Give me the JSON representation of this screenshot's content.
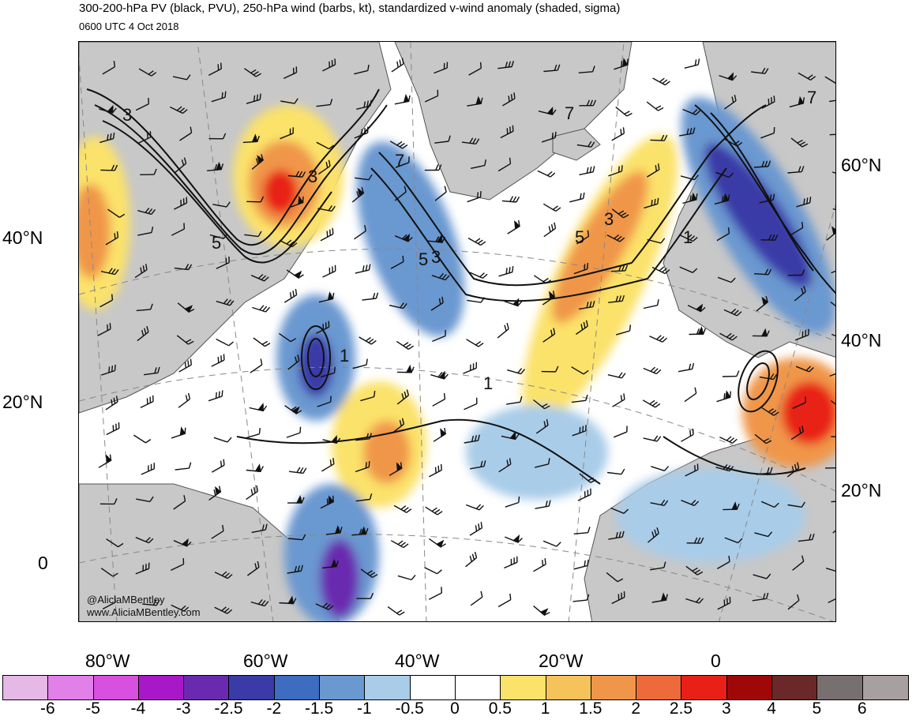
{
  "header": {
    "title": "300-200-hPa PV (black, PVU), 250-hPa wind (barbs, kt), standardized v-wind anomaly (shaded, sigma)",
    "valid_time": "0600 UTC 4 Oct 2018"
  },
  "map": {
    "projection": "conic (North Atlantic sector)",
    "left_lat_labels": [
      "40°N",
      "20°N",
      "0"
    ],
    "right_lat_labels": [
      "60°N",
      "40°N",
      "20°N"
    ],
    "lon_labels": [
      "80°W",
      "60°W",
      "40°W",
      "20°W",
      "0"
    ],
    "pv_contour_labels": [
      "3",
      "5",
      "3",
      "7",
      "5",
      "3",
      "5",
      "3",
      "1",
      "7",
      "1",
      "1",
      "7"
    ],
    "colors": {
      "land": "#c8c8c8",
      "ocean": "#ffffff",
      "coast": "#555555",
      "pv_contour": "#111111",
      "barb": "#111111"
    }
  },
  "credit": {
    "handle": "@AliciaMBentley",
    "site": "www.AliciaMBentley.com"
  },
  "colorbar": {
    "labels": [
      "-6",
      "-5",
      "-4",
      "-3",
      "-2.5",
      "-2",
      "-1.5",
      "-1",
      "-0.5",
      "0",
      "0.5",
      "1",
      "1.5",
      "2",
      "2.5",
      "3",
      "4",
      "5",
      "6"
    ],
    "colors": [
      "#e6b8e6",
      "#e080e8",
      "#d850e0",
      "#a818c8",
      "#6a2ab0",
      "#3a3aa8",
      "#3d6cc0",
      "#6a98d0",
      "#a9cce8",
      "#ffffff",
      "#ffffff",
      "#fbe26a",
      "#f6c25a",
      "#f0964a",
      "#ee6a3a",
      "#e82018",
      "#a00808",
      "#6a2828",
      "#787070",
      "#a8a0a0"
    ]
  }
}
